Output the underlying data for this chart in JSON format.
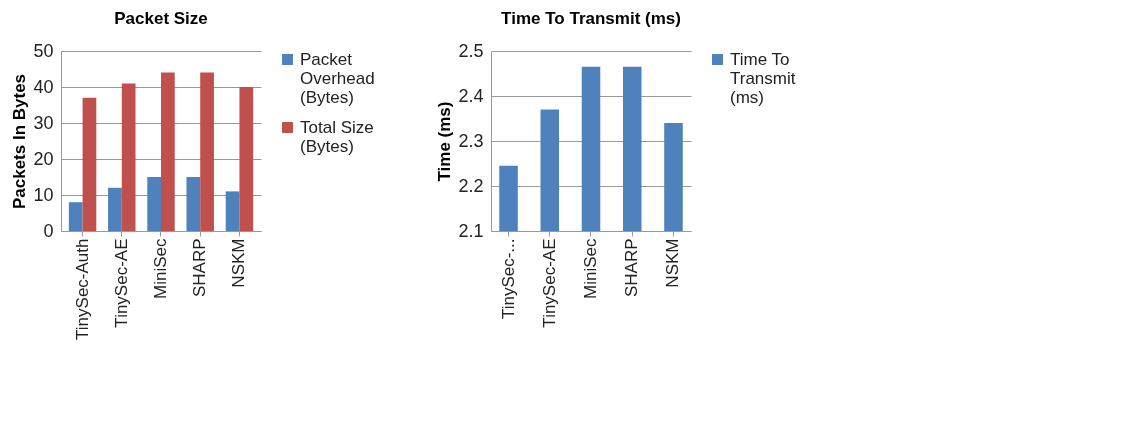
{
  "chart_data": [
    {
      "type": "bar",
      "title": "Packet Size",
      "ylabel": "Packets In Bytes",
      "categories": [
        "TinySec-Auth",
        "TinySec-AE",
        "MiniSec",
        "SHARP",
        "NSKM"
      ],
      "series": [
        {
          "name": "Packet Overhead (Bytes)",
          "color": "#4f81bd",
          "values": [
            8,
            12,
            15,
            15,
            11
          ]
        },
        {
          "name": "Total Size (Bytes)",
          "color": "#c0504d",
          "values": [
            37,
            41,
            44,
            44,
            40
          ]
        }
      ],
      "ylim": [
        0,
        50
      ],
      "yticks": [
        0,
        10,
        20,
        30,
        40,
        50
      ],
      "grid": "y",
      "legend": "right"
    },
    {
      "type": "bar",
      "title": "Time To Transmit (ms)",
      "ylabel": "Time (ms)",
      "categories": [
        "TinySec-...",
        "TinySec-AE",
        "MiniSec",
        "SHARP",
        "NSKM"
      ],
      "series": [
        {
          "name": "Time To Transmit (ms)",
          "color": "#4f81bd",
          "values": [
            2.245,
            2.37,
            2.465,
            2.465,
            2.34
          ]
        }
      ],
      "ylim": [
        2.1,
        2.5
      ],
      "yticks": [
        2.1,
        2.2,
        2.3,
        2.4,
        2.5
      ],
      "grid": "y",
      "legend": "right"
    }
  ]
}
